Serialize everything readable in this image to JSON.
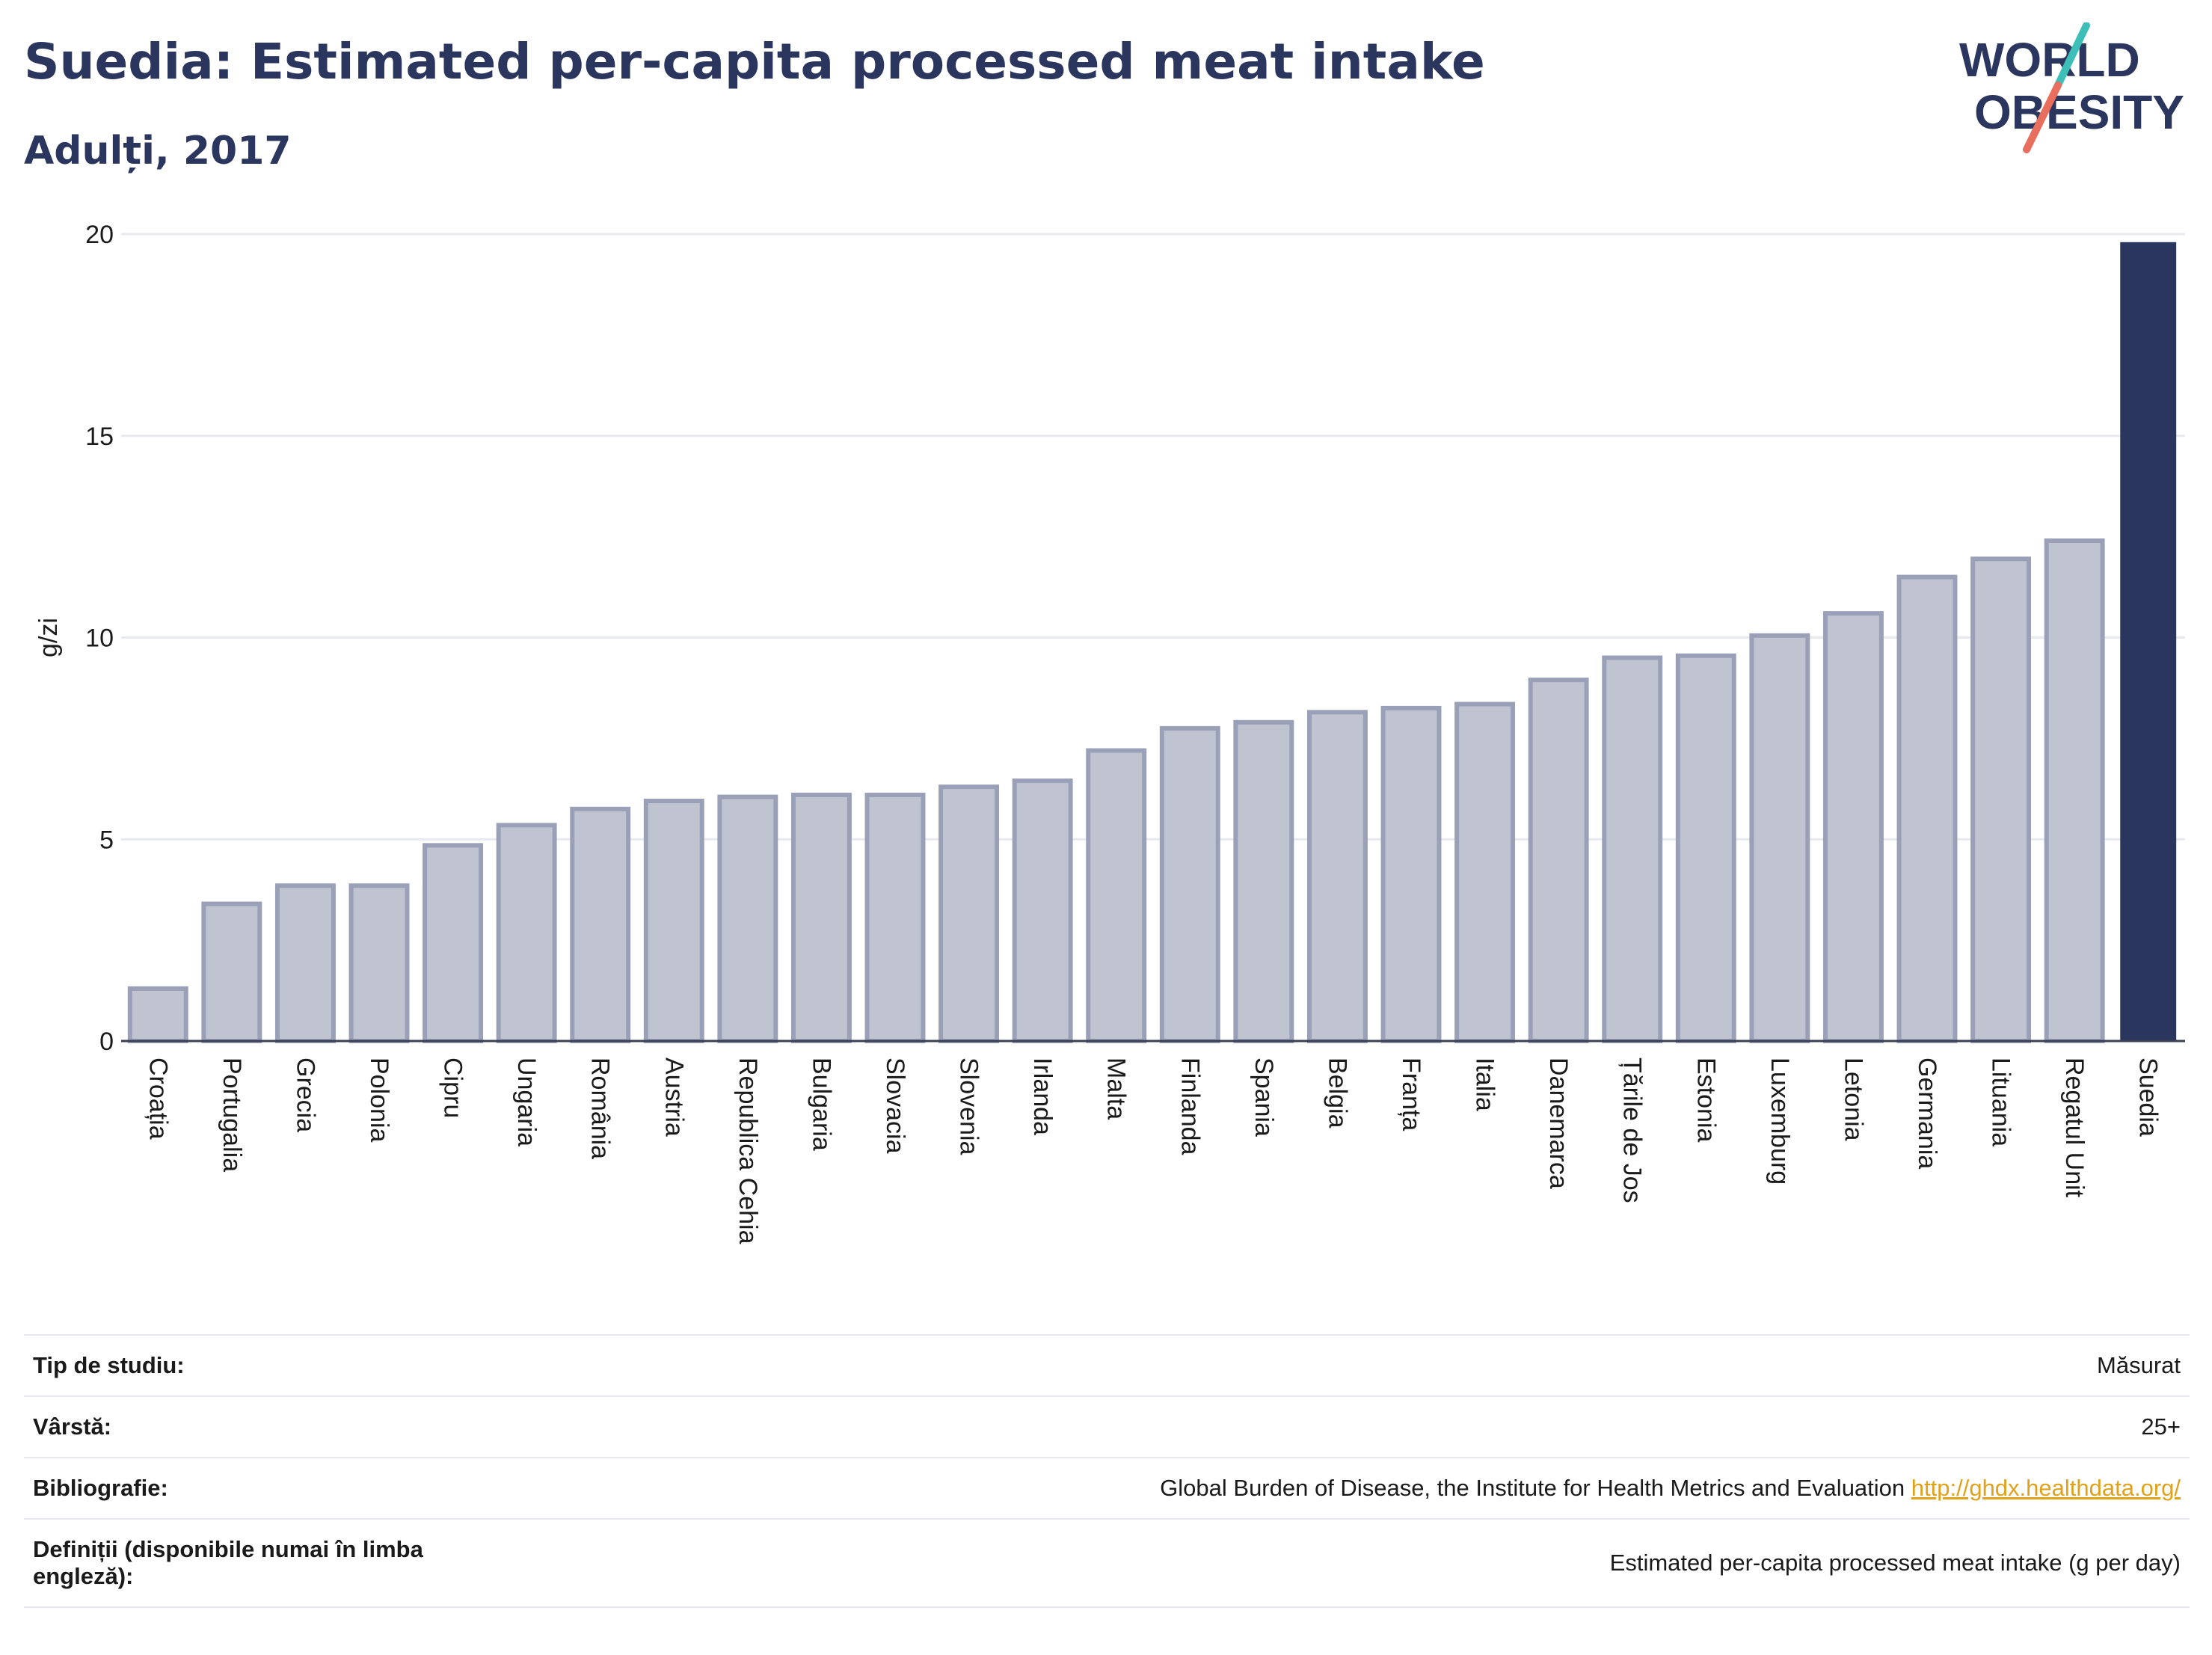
{
  "header": {
    "title": "Suedia: Estimated per-capita processed meat intake",
    "subtitle": "Adulți, 2017",
    "logo_top": "WORLD",
    "logo_bottom": "OBESITY"
  },
  "colors": {
    "title": "#2b365f",
    "bar_default_fill": "#c0c4d0",
    "bar_default_stroke": "#9aa0b8",
    "bar_highlight": "#2b365f",
    "logo_teal": "#3dbfb8",
    "logo_coral": "#e86e5e",
    "link": "#e0a21a"
  },
  "chart_data": {
    "type": "bar",
    "ylabel": "g/zi",
    "ylim": [
      0,
      20
    ],
    "yticks": [
      0,
      5,
      10,
      15,
      20
    ],
    "grid": true,
    "highlight": "Suedia",
    "categories": [
      "Croația",
      "Portugalia",
      "Grecia",
      "Polonia",
      "Cipru",
      "Ungaria",
      "România",
      "Austria",
      "Republica Cehia",
      "Bulgaria",
      "Slovacia",
      "Slovenia",
      "Irlanda",
      "Malta",
      "Finlanda",
      "Spania",
      "Belgia",
      "Franța",
      "Italia",
      "Danemarca",
      "Țările de Jos",
      "Estonia",
      "Luxemburg",
      "Letonia",
      "Germania",
      "Lituania",
      "Regatul Unit",
      "Suedia"
    ],
    "values": [
      1.3,
      3.4,
      3.85,
      3.85,
      4.85,
      5.35,
      5.75,
      5.95,
      6.05,
      6.1,
      6.1,
      6.3,
      6.45,
      7.2,
      7.75,
      7.9,
      8.15,
      8.25,
      8.35,
      8.95,
      9.5,
      9.55,
      10.05,
      10.6,
      11.5,
      11.95,
      12.4,
      19.8
    ]
  },
  "info": {
    "rows": [
      {
        "label": "Tip de studiu:",
        "value": "Măsurat"
      },
      {
        "label": "Vârstă:",
        "value": "25+"
      },
      {
        "label": "Bibliografie:",
        "value": "Global Burden of Disease, the Institute for Health Metrics and Evaluation",
        "link": "http://ghdx.healthdata.org/"
      },
      {
        "label": "Definiții (disponibile numai în limba engleză):",
        "value": "Estimated per-capita processed meat intake (g per day)"
      }
    ]
  }
}
